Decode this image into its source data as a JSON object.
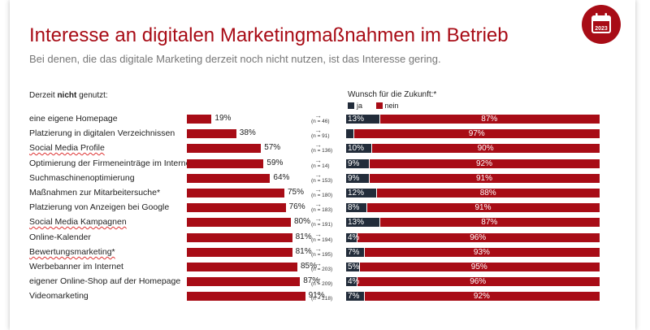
{
  "title": "Interesse an digitalen Marketingmaßnahmen im Betrieb",
  "subtitle": "Bei denen, die das digitale Marketing derzeit noch nicht nutzen, ist das Interesse gering.",
  "badge_icon": "calendar-2023-icon",
  "badge_text": "2023",
  "colors": {
    "brand": "#a80c16",
    "ja": "#222c3a",
    "nein": "#a80c16"
  },
  "left_header_prefix": "Derzeit ",
  "left_header_bold": "nicht",
  "left_header_suffix": " genutzt:",
  "right_header": "Wunsch für die Zukunft:*",
  "legend": {
    "ja": "ja",
    "nein": "nein"
  },
  "chart_data": [
    {
      "type": "bar",
      "orientation": "horizontal",
      "xlim": [
        0,
        100
      ],
      "categories": [
        "eine eigene Homepage",
        "Platzierung in digitalen Verzeichnissen",
        "Social Media Profile",
        "Optimierung der Firmeneinträge im Internet",
        "Suchmaschinenoptimierung",
        "Maßnahmen zur Mitarbeitersuche*",
        "Platzierung von Anzeigen bei Google",
        "Social Media Kampagnen",
        "Online-Kalender",
        "Bewertungsmarketing*",
        "Werbebanner im Internet",
        "eigener Online-Shop auf der Homepage",
        "Videomarketing"
      ],
      "values": [
        19,
        38,
        57,
        59,
        64,
        75,
        76,
        80,
        81,
        81,
        85,
        87,
        91
      ],
      "labels": [
        "19%",
        "38%",
        "57%",
        "59%",
        "64%",
        "75%",
        "76%",
        "80%",
        "81%",
        "81%",
        "85%",
        "87%",
        "91%"
      ],
      "n_labels": [
        "(n = 46)",
        "(n = 91)",
        "(n = 136)",
        "(n = 14)",
        "(n = 153)",
        "(n = 180)",
        "(n = 183)",
        "(n = 191)",
        "(n = 194)",
        "(n = 195)",
        "(n = 203)",
        "(n = 209)",
        "(n = 218)"
      ]
    },
    {
      "type": "bar",
      "orientation": "horizontal",
      "stacked": true,
      "xlim": [
        0,
        100
      ],
      "series": [
        {
          "name": "ja",
          "values": [
            13,
            3,
            10,
            9,
            9,
            12,
            8,
            13,
            4,
            7,
            5,
            4,
            7
          ],
          "labels": [
            "13%",
            "",
            "10%",
            "9%",
            "9%",
            "12%",
            "8%",
            "13%",
            "4%",
            "7%",
            "5%",
            "4%",
            "7%"
          ]
        },
        {
          "name": "nein",
          "values": [
            87,
            97,
            90,
            92,
            91,
            88,
            91,
            87,
            96,
            93,
            95,
            96,
            92
          ],
          "labels": [
            "87%",
            "97%",
            "90%",
            "92%",
            "91%",
            "88%",
            "91%",
            "87%",
            "96%",
            "93%",
            "95%",
            "96%",
            "92%"
          ]
        }
      ]
    }
  ]
}
